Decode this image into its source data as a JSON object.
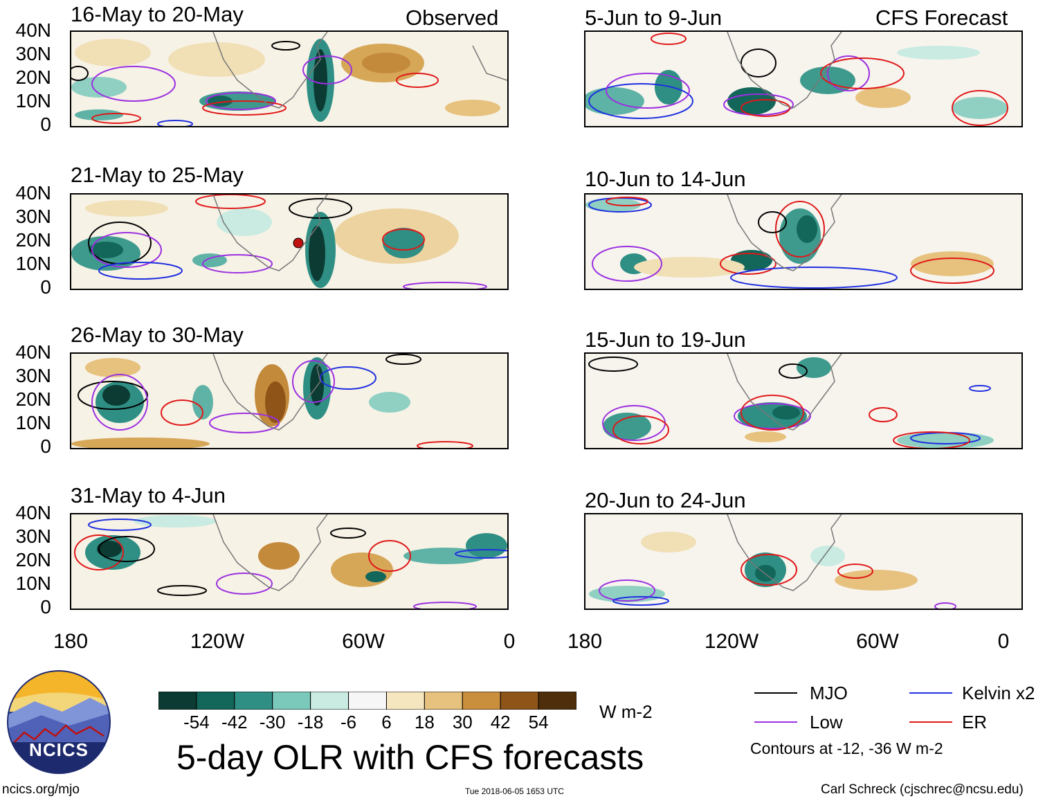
{
  "header": {
    "observed_label": "Observed",
    "forecast_label": "CFS Forecast"
  },
  "panels": {
    "observed": [
      {
        "title": "16-May to 20-May"
      },
      {
        "title": "21-May to 25-May"
      },
      {
        "title": "26-May to 30-May"
      },
      {
        "title": "31-May to 4-Jun"
      }
    ],
    "forecast": [
      {
        "title": "5-Jun to 9-Jun"
      },
      {
        "title": "10-Jun to 14-Jun"
      },
      {
        "title": "15-Jun to 19-Jun"
      },
      {
        "title": "20-Jun to 24-Jun"
      }
    ]
  },
  "axes": {
    "lat_labels": [
      "40N",
      "30N",
      "20N",
      "10N",
      "0"
    ],
    "lon_labels": [
      "180",
      "120W",
      "60W",
      "0"
    ]
  },
  "colorbar": {
    "ticks": [
      "-54",
      "-42",
      "-30",
      "-18",
      "-6",
      "6",
      "18",
      "30",
      "42",
      "54"
    ],
    "colors": [
      "#0b3b32",
      "#12665a",
      "#2f8f84",
      "#7bc9bb",
      "#c9ebe2",
      "#f6f6f6",
      "#f6e6bf",
      "#e6c27e",
      "#c98f3c",
      "#8e5418",
      "#4f2f0b"
    ],
    "units": "W m-2"
  },
  "legend": {
    "items": [
      {
        "label": "MJO",
        "color": "#000000"
      },
      {
        "label": "Kelvin x2",
        "color": "#1f2fe0"
      },
      {
        "label": "Low",
        "color": "#9b30e0"
      },
      {
        "label": "ER",
        "color": "#e01818"
      }
    ],
    "note": "Contours at -12, -36 W m-2"
  },
  "logo": {
    "text": "NCICS"
  },
  "main_title": "5-day OLR with CFS forecasts",
  "footer": {
    "url": "ncics.org/mjo",
    "timestamp": "Tue 2018-06-05 1653 UTC",
    "credit": "Carl Schreck (cjschrec@ncsu.edu)"
  }
}
